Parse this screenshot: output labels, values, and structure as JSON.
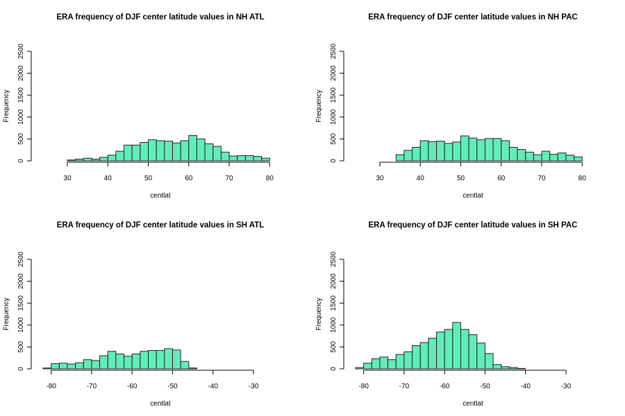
{
  "colors": {
    "bar_fill": "#63ECBA",
    "bar_stroke": "#222222",
    "axis": "#000000"
  },
  "chart_data": [
    {
      "type": "bar",
      "title": "ERA frequency of DJF center latitude values in NH ATL",
      "xlabel": "centlat",
      "ylabel": "Frequency",
      "xlim": [
        24,
        82
      ],
      "ylim": [
        0,
        2500
      ],
      "x_ticks": [
        "30",
        "40",
        "50",
        "60",
        "70",
        "80"
      ],
      "y_ticks": [
        "0",
        "500",
        "1000",
        "1500",
        "2000",
        "2500"
      ],
      "bin_width": 2,
      "bin_start": 24,
      "values": [
        0,
        0,
        0,
        20,
        40,
        60,
        40,
        80,
        130,
        220,
        360,
        360,
        420,
        480,
        460,
        450,
        410,
        460,
        580,
        500,
        390,
        330,
        200,
        110,
        120,
        120,
        100,
        60,
        0
      ]
    },
    {
      "type": "bar",
      "title": "ERA frequency of DJF center latitude values in NH PAC",
      "xlabel": "centlat",
      "ylabel": "Frequency",
      "xlim": [
        24,
        82
      ],
      "ylim": [
        0,
        2500
      ],
      "x_ticks": [
        "30",
        "40",
        "50",
        "60",
        "70",
        "80"
      ],
      "y_ticks": [
        "0",
        "500",
        "1000",
        "1500",
        "2000",
        "2500"
      ],
      "bin_width": 2,
      "bin_start": 24,
      "values": [
        0,
        0,
        0,
        0,
        0,
        140,
        240,
        310,
        460,
        440,
        450,
        400,
        430,
        570,
        520,
        480,
        510,
        510,
        460,
        310,
        260,
        200,
        140,
        220,
        150,
        180,
        130,
        90,
        0
      ]
    },
    {
      "type": "bar",
      "title": "ERA frequency of DJF center latitude values in SH ATL",
      "xlabel": "centlat",
      "ylabel": "Frequency",
      "xlim": [
        -82,
        -24
      ],
      "ylim": [
        0,
        2500
      ],
      "x_ticks": [
        "-80",
        "-70",
        "-60",
        "-50",
        "-40",
        "-30"
      ],
      "y_ticks": [
        "0",
        "500",
        "1000",
        "1500",
        "2000",
        "2500"
      ],
      "bin_width": 2,
      "bin_start": -82,
      "values": [
        20,
        120,
        130,
        110,
        140,
        210,
        190,
        300,
        400,
        340,
        290,
        340,
        400,
        420,
        420,
        460,
        430,
        170,
        20,
        0,
        0,
        0,
        0,
        0,
        0,
        0,
        0,
        0,
        0
      ]
    },
    {
      "type": "bar",
      "title": "ERA frequency of DJF center latitude values in SH PAC",
      "xlabel": "centlat",
      "ylabel": "Frequency",
      "xlim": [
        -82,
        -24
      ],
      "ylim": [
        0,
        2500
      ],
      "x_ticks": [
        "-80",
        "-70",
        "-60",
        "-50",
        "-40",
        "-30"
      ],
      "y_ticks": [
        "0",
        "500",
        "1000",
        "1500",
        "2000",
        "2500"
      ],
      "bin_width": 2,
      "bin_start": -82,
      "values": [
        30,
        130,
        230,
        270,
        210,
        330,
        390,
        530,
        600,
        700,
        840,
        900,
        1060,
        900,
        780,
        590,
        350,
        100,
        50,
        30,
        10,
        0,
        0,
        0,
        0,
        0,
        0,
        0,
        0
      ]
    }
  ]
}
